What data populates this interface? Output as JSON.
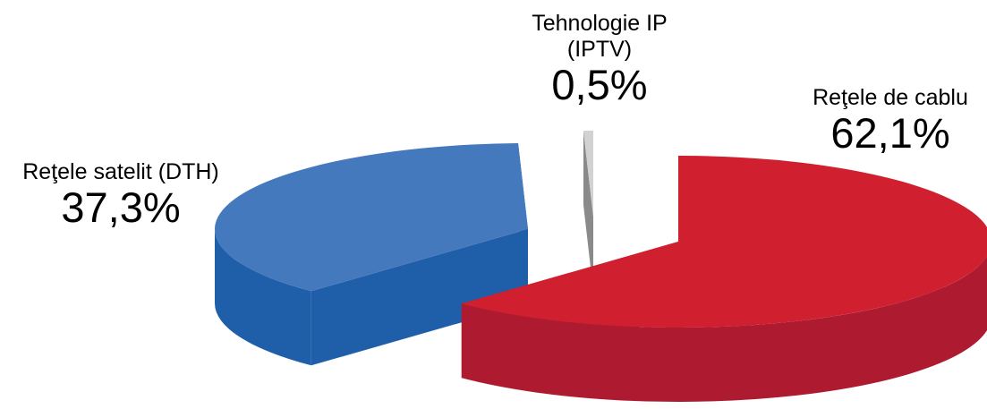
{
  "chart_data": {
    "type": "pie",
    "style": "3d-exploded",
    "categories": [
      "Reţele de cablu",
      "Reţele satelit (DTH)",
      "Tehnologie IP (IPTV)"
    ],
    "values": [
      62.1,
      37.3,
      0.5
    ],
    "value_labels": [
      "62,1%",
      "37,3%",
      "0,5%"
    ],
    "category_label_lines": [
      [
        "Reţele de cablu"
      ],
      [
        "Reţele satelit (DTH)"
      ],
      [
        "Tehnologie IP",
        "(IPTV)"
      ]
    ],
    "title": "",
    "legend": "none",
    "colors": {
      "cablu_top": "#d0202f",
      "cablu_side": "#ae1b31",
      "satelit_top": "#4479bd",
      "satelit_side": "#1f5ea9",
      "iptv_top": "#d2d2d2",
      "iptv_side": "#8a8a8a"
    }
  }
}
